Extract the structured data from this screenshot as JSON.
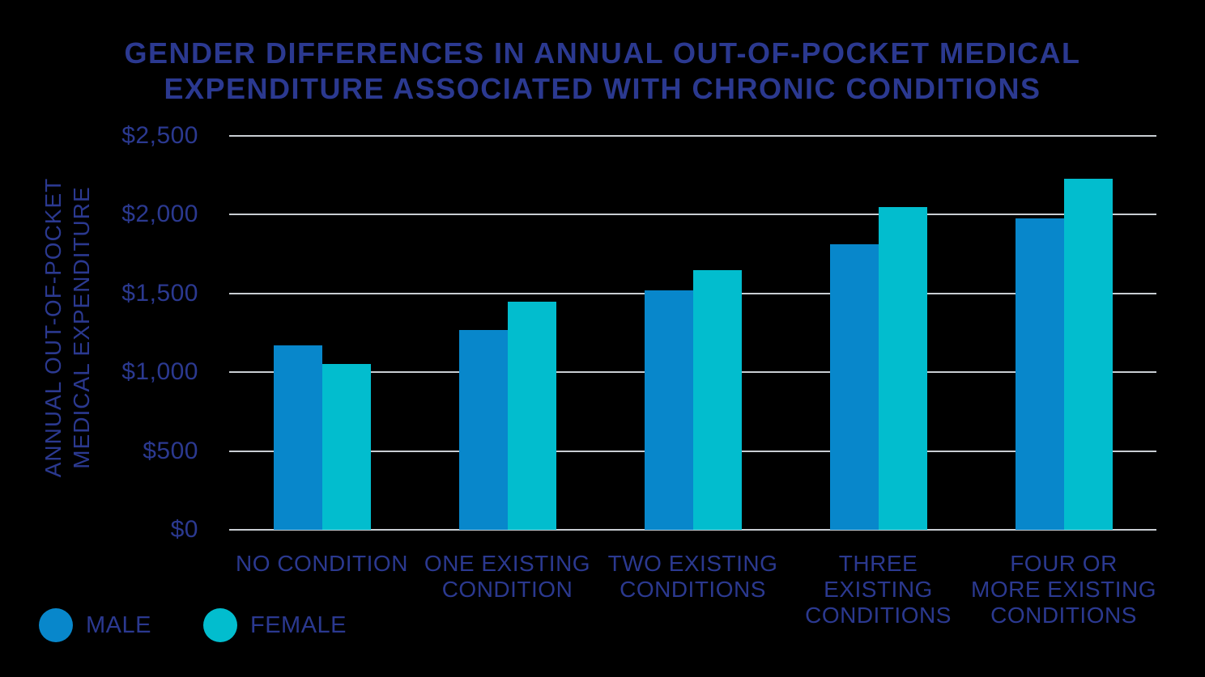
{
  "title": "GENDER DIFFERENCES IN ANNUAL OUT-OF-POCKET MEDICAL\nEXPENDITURE ASSOCIATED WITH CHRONIC CONDITIONS",
  "colors": {
    "background": "#000000",
    "text": "#2b3990",
    "gridline": "#c9ced3",
    "male": "#0887cb",
    "female": "#02bdce"
  },
  "chart_data": {
    "type": "bar",
    "title": "GENDER DIFFERENCES IN ANNUAL OUT-OF-POCKET MEDICAL EXPENDITURE ASSOCIATED WITH CHRONIC CONDITIONS",
    "xlabel": "",
    "ylabel": "ANNUAL OUT-OF-POCKET\nMEDICAL EXPENDITURE",
    "categories": [
      "NO CONDITION",
      "ONE EXISTING\nCONDITION",
      "TWO EXISTING\nCONDITIONS",
      "THREE EXISTING\nCONDITIONS",
      "FOUR OR\nMORE EXISTING\nCONDITIONS"
    ],
    "series": [
      {
        "name": "MALE",
        "color": "#0887cb",
        "values": [
          1170,
          1270,
          1520,
          1810,
          1975
        ]
      },
      {
        "name": "FEMALE",
        "color": "#02bdce",
        "values": [
          1050,
          1450,
          1650,
          2050,
          2230
        ]
      }
    ],
    "ylim": [
      0,
      2500
    ],
    "yticks": [
      {
        "value": 2500,
        "label": "$2,500"
      },
      {
        "value": 2000,
        "label": "$2,000"
      },
      {
        "value": 1500,
        "label": "$1,500"
      },
      {
        "value": 1000,
        "label": "$1,000"
      },
      {
        "value": 500,
        "label": "$500"
      },
      {
        "value": 0,
        "label": "$0"
      }
    ],
    "grid": "horizontal",
    "legend_position": "bottom-left"
  },
  "legend": {
    "male_label": "MALE",
    "female_label": "FEMALE"
  }
}
